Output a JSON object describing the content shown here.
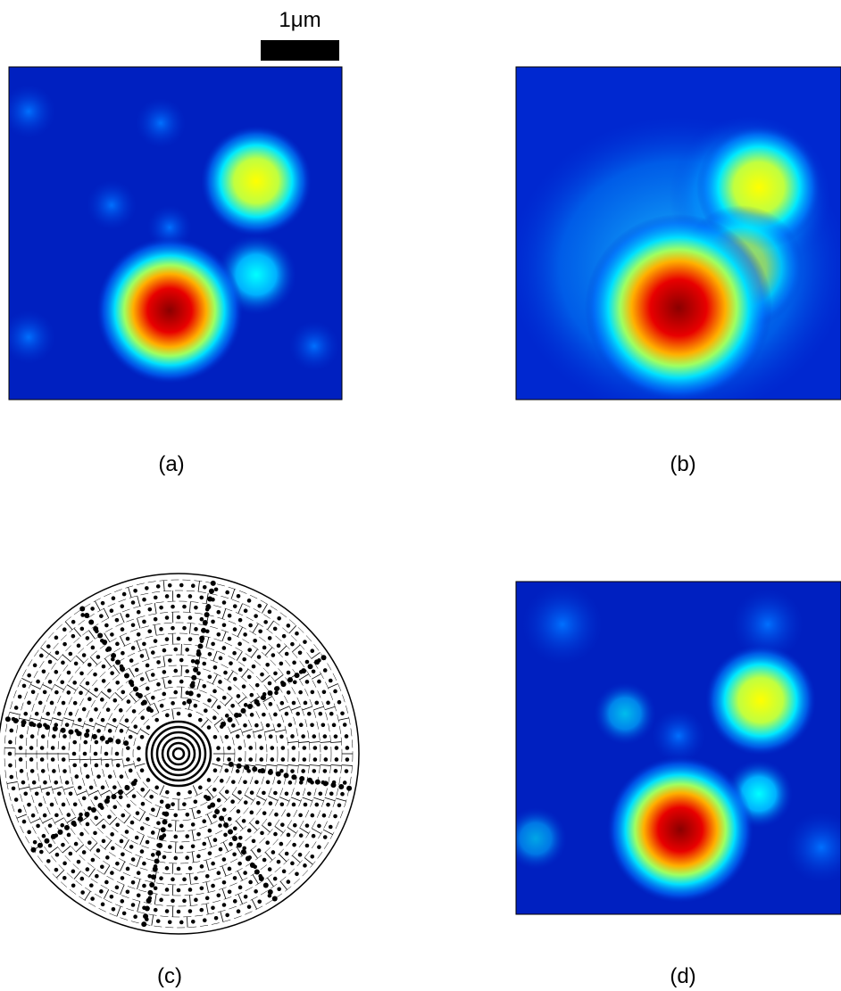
{
  "scale_bar": {
    "label": "1μm"
  },
  "panels": [
    {
      "label": "(a)"
    },
    {
      "label": "(b)"
    },
    {
      "label": "(c)"
    },
    {
      "label": "(d)"
    }
  ]
}
